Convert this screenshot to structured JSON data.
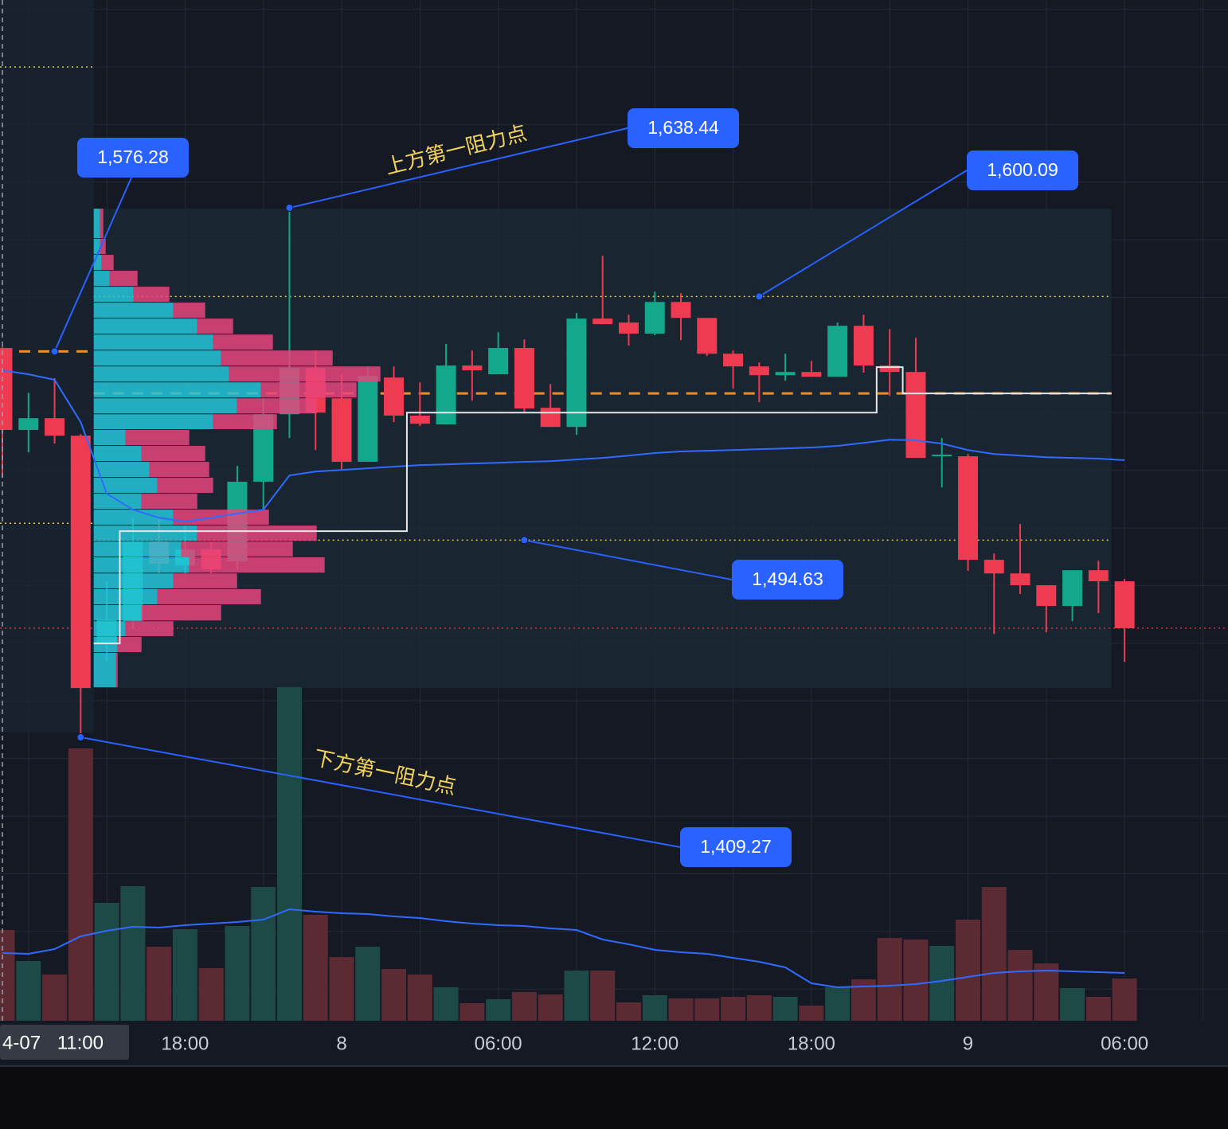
{
  "chart_data": {
    "type": "candlestick",
    "categories": [
      "4-07 11:00",
      null,
      null,
      null,
      null,
      null,
      null,
      "18:00",
      null,
      null,
      null,
      null,
      null,
      "8",
      null,
      null,
      null,
      null,
      null,
      "06:00",
      null,
      null,
      null,
      null,
      null,
      "12:00",
      null,
      null,
      null,
      null,
      null,
      "18:00",
      null,
      null,
      null,
      null,
      null,
      "9",
      null,
      null,
      null,
      null,
      null,
      "06:00"
    ],
    "open": [
      1577.8,
      1542.3,
      1547.4,
      1539.8,
      1449.9,
      1459.5,
      1494.0,
      1483.7,
      1490.6,
      1485.4,
      1519.9,
      1549.1,
      1569.1,
      1556.0,
      1528.5,
      1565.0,
      1548.5,
      1544.7,
      1570.2,
      1566.4,
      1577.8,
      1551.9,
      1543.6,
      1590.5,
      1588.8,
      1584.0,
      1597.7,
      1590.8,
      1575.3,
      1569.8,
      1566.0,
      1567.4,
      1565.3,
      1587.4,
      1570.2,
      1567.4,
      1530.9,
      1530.9,
      1486.1,
      1480.2,
      1475.1,
      1466.1,
      1481.6,
      1476.8
    ],
    "high": [
      1578.4,
      1558.4,
      1564.7,
      1540.5,
      1476.8,
      1504.3,
      1504.3,
      1500.9,
      1494.0,
      1526.7,
      1556.0,
      1638.44,
      1576.7,
      1566.4,
      1569.8,
      1569.8,
      1562.9,
      1579.5,
      1576.7,
      1584.6,
      1581.5,
      1562.2,
      1592.9,
      1617.7,
      1592.2,
      1602.2,
      1601.5,
      1590.8,
      1576.7,
      1571.5,
      1575.3,
      1572.2,
      1588.8,
      1592.2,
      1586.0,
      1582.2,
      1538.8,
      1531.9,
      1488.8,
      1501.6,
      1475.1,
      1481.6,
      1485.7,
      1477.8
    ],
    "low": [
      1521.6,
      1532.6,
      1536.4,
      1409.27,
      1442.3,
      1456.1,
      1480.2,
      1480.2,
      1480.2,
      1482.0,
      1507.8,
      1538.8,
      1533.6,
      1525.0,
      1528.5,
      1545.7,
      1544.0,
      1544.7,
      1555.0,
      1566.4,
      1549.8,
      1543.6,
      1540.2,
      1588.1,
      1578.8,
      1583.3,
      1581.2,
      1574.3,
      1560.2,
      1554.3,
      1563.6,
      1565.3,
      1565.3,
      1567.1,
      1557.1,
      1530.2,
      1517.4,
      1481.3,
      1454.0,
      1471.3,
      1454.7,
      1459.5,
      1463.0,
      1442.0
    ],
    "close": [
      1542.3,
      1547.4,
      1539.8,
      1430.6,
      1460.2,
      1494.0,
      1484.4,
      1490.6,
      1482.0,
      1519.9,
      1549.1,
      1569.1,
      1549.8,
      1528.5,
      1565.7,
      1548.5,
      1545.0,
      1570.2,
      1568.1,
      1577.8,
      1551.6,
      1543.6,
      1590.5,
      1588.1,
      1584.0,
      1597.7,
      1590.8,
      1575.3,
      1569.8,
      1566.0,
      1567.4,
      1565.3,
      1587.4,
      1570.2,
      1567.4,
      1530.2,
      1531.6,
      1486.1,
      1480.2,
      1475.1,
      1466.1,
      1481.6,
      1476.8,
      1456.5
    ],
    "up_color": "#13a78c",
    "down_color": "#ef3b51",
    "ma": [
      1568.1,
      1566.4,
      1564.0,
      1545.7,
      1514.7,
      1507.8,
      1504.3,
      1502.6,
      1504.3,
      1506.1,
      1507.8,
      1522.6,
      1524.3,
      1525.0,
      1525.7,
      1526.4,
      1527.1,
      1527.4,
      1527.8,
      1528.1,
      1528.5,
      1528.8,
      1529.5,
      1530.2,
      1531.2,
      1532.3,
      1533.0,
      1533.3,
      1533.6,
      1534.0,
      1534.3,
      1534.7,
      1535.4,
      1536.7,
      1538.1,
      1537.8,
      1536.4,
      1533.6,
      1531.9,
      1531.2,
      1530.5,
      1530.2,
      1529.9,
      1529.2
    ],
    "ma_color": "#2f6bff",
    "developing_poc": [
      null,
      null,
      null,
      null,
      1449.9,
      1498.5,
      1498.5,
      1498.5,
      1498.5,
      1498.5,
      1498.5,
      1498.5,
      1498.5,
      1498.5,
      1498.5,
      1498.5,
      1549.8,
      1549.8,
      1549.8,
      1549.8,
      1549.8,
      1549.8,
      1549.8,
      1549.8,
      1549.8,
      1549.8,
      1549.8,
      1549.8,
      1549.8,
      1549.8,
      1549.8,
      1549.8,
      1549.8,
      1549.8,
      1569.5,
      1558.1,
      1558.1,
      1558.1,
      1558.1,
      1558.1,
      1558.1,
      1558.1,
      1558.1,
      null
    ],
    "poc_color": "#e6e6e6",
    "volume": [
      114,
      75,
      58,
      342,
      148,
      169,
      93,
      115,
      66,
      119,
      168,
      419,
      133,
      80,
      93,
      65,
      58,
      42,
      22,
      27,
      36,
      33,
      63,
      63,
      23,
      32,
      28,
      28,
      30,
      32,
      30,
      19,
      42,
      52,
      104,
      102,
      94,
      127,
      168,
      89,
      72,
      41,
      30,
      53
    ],
    "volume_ma": [
      85,
      84,
      90,
      106,
      113,
      118,
      117,
      120,
      122,
      124,
      127,
      140,
      137,
      135,
      134,
      131,
      129,
      125,
      122,
      120,
      119,
      116,
      114,
      102,
      96,
      89,
      86,
      84,
      79,
      74,
      67,
      47,
      42,
      43,
      44,
      46,
      50,
      55,
      60,
      62,
      63,
      62,
      61,
      60
    ],
    "volume_up_color": "#1d4a47",
    "volume_down_color": "#5c2a32",
    "ylim": [
      1286.6,
      1728.4
    ],
    "y2lim": [
      0,
      1282
    ],
    "levels": [
      {
        "value": 1576.28,
        "start": 0,
        "end": 3,
        "color": "#f08c28",
        "style": "dashed"
      },
      {
        "value": 1558.1,
        "start": 4,
        "end": 42,
        "color": "#f08c28",
        "style": "dashed"
      },
      {
        "value": 1699.4,
        "start": 0,
        "end": 3,
        "color": "#e6c84a",
        "style": "dotted"
      },
      {
        "value": 1501.9,
        "start": 0,
        "end": 3,
        "color": "#e6c84a",
        "style": "dotted"
      },
      {
        "value": 1600.09,
        "start": 4,
        "end": 42,
        "color": "#e6c84a",
        "style": "dotted"
      },
      {
        "value": 1494.63,
        "start": 4,
        "end": 42,
        "color": "#e6c84a",
        "style": "dotted"
      }
    ],
    "last_price_color": "#f23645",
    "profile": {
      "start": 4,
      "end": 42,
      "bins": [
        1430.6,
        1445.8,
        1452.7,
        1459.5,
        1466.5,
        1473.4,
        1480.2,
        1487.2,
        1494.0,
        1500.9,
        1507.8,
        1514.7,
        1521.6,
        1528.5,
        1535.4,
        1542.3,
        1549.1,
        1556.0,
        1562.9,
        1569.8,
        1576.7,
        1583.6,
        1590.5,
        1597.4,
        1604.3,
        1611.2,
        1618.1,
        1625.0,
        1638.1
      ],
      "up": [
        28,
        30,
        40,
        60,
        80,
        100,
        120,
        110,
        130,
        100,
        60,
        80,
        70,
        60,
        40,
        150,
        180,
        210,
        170,
        160,
        150,
        130,
        100,
        50,
        20,
        10,
        8,
        8
      ],
      "down": [
        2,
        30,
        60,
        100,
        130,
        80,
        170,
        140,
        150,
        120,
        70,
        70,
        75,
        80,
        80,
        80,
        100,
        120,
        190,
        140,
        75,
        45,
        40,
        45,
        35,
        15,
        7,
        4
      ],
      "up_color": "#26c6da",
      "down_color": "#e8457c"
    },
    "callouts": [
      {
        "value": 1576.28,
        "label": "1,576.28",
        "index": 2
      },
      {
        "value": 1638.44,
        "label": "1,638.44",
        "index": 11
      },
      {
        "value": 1600.09,
        "label": "1,600.09",
        "index": 29
      },
      {
        "value": 1494.63,
        "label": "1,494.63",
        "index": 20
      },
      {
        "value": 1409.27,
        "label": "1,409.27",
        "index": 3
      }
    ],
    "callout_color": "#2962ff",
    "annotations": [
      "上方第一阻力点",
      "下方第一阻力点"
    ],
    "grid": true
  }
}
